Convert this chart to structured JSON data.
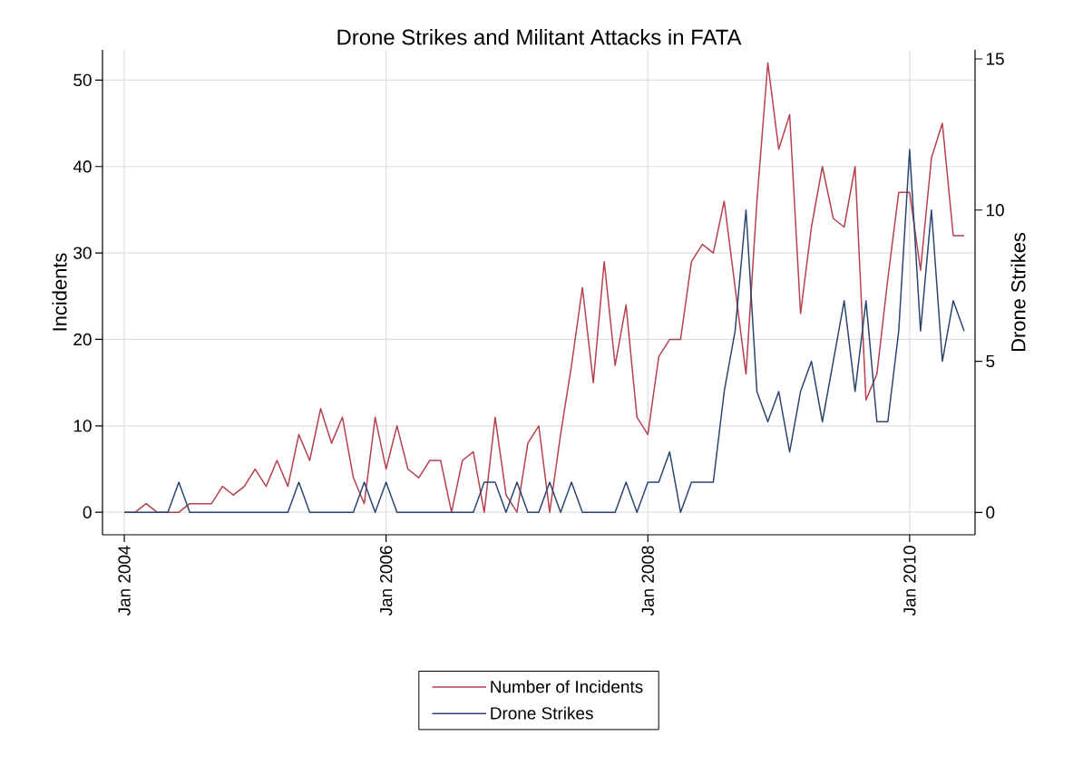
{
  "chart_data": {
    "type": "line",
    "title": "Drone Strikes and Militant Attacks in FATA",
    "ylabel": "Incidents",
    "y2label": "Drone Strikes",
    "x": [
      "2004-01",
      "2004-02",
      "2004-03",
      "2004-04",
      "2004-05",
      "2004-06",
      "2004-07",
      "2004-08",
      "2004-09",
      "2004-10",
      "2004-11",
      "2004-12",
      "2005-01",
      "2005-02",
      "2005-03",
      "2005-04",
      "2005-05",
      "2005-06",
      "2005-07",
      "2005-08",
      "2005-09",
      "2005-10",
      "2005-11",
      "2005-12",
      "2006-01",
      "2006-02",
      "2006-03",
      "2006-04",
      "2006-05",
      "2006-06",
      "2006-07",
      "2006-08",
      "2006-09",
      "2006-10",
      "2006-11",
      "2006-12",
      "2007-01",
      "2007-02",
      "2007-03",
      "2007-04",
      "2007-05",
      "2007-06",
      "2007-07",
      "2007-08",
      "2007-09",
      "2007-10",
      "2007-11",
      "2007-12",
      "2008-01",
      "2008-02",
      "2008-03",
      "2008-04",
      "2008-05",
      "2008-06",
      "2008-07",
      "2008-08",
      "2008-09",
      "2008-10",
      "2008-11",
      "2008-12",
      "2009-01",
      "2009-02",
      "2009-03",
      "2009-04",
      "2009-05",
      "2009-06",
      "2009-07",
      "2009-08",
      "2009-09",
      "2009-10",
      "2009-11",
      "2009-12",
      "2010-01",
      "2010-02",
      "2010-03",
      "2010-04",
      "2010-05",
      "2010-06"
    ],
    "series": [
      {
        "name": "Number of Incidents",
        "color": "#b5414f",
        "values": [
          0,
          0,
          1,
          0,
          0,
          0,
          1,
          1,
          1,
          3,
          2,
          3,
          5,
          3,
          6,
          3,
          9,
          6,
          12,
          8,
          11,
          4,
          1,
          11,
          5,
          10,
          5,
          4,
          6,
          6,
          0,
          6,
          7,
          0,
          11,
          2,
          0,
          8,
          10,
          0,
          9,
          17,
          26,
          15,
          29,
          17,
          24,
          11,
          9,
          18,
          20,
          20,
          29,
          31,
          30,
          36,
          26,
          16,
          36,
          52,
          42,
          46,
          23,
          33,
          40,
          34,
          33,
          40,
          13,
          16,
          27,
          37,
          37,
          28,
          41,
          45,
          32,
          32
        ]
      },
      {
        "name": "Drone Strikes",
        "color": "#2a4570",
        "axis": "y2",
        "values": [
          0,
          0,
          0,
          0,
          0,
          1,
          0,
          0,
          0,
          0,
          0,
          0,
          0,
          0,
          0,
          0,
          1,
          0,
          0,
          0,
          0,
          0,
          1,
          0,
          1,
          0,
          0,
          0,
          0,
          0,
          0,
          0,
          0,
          1,
          1,
          0,
          1,
          0,
          0,
          1,
          0,
          1,
          0,
          0,
          0,
          0,
          1,
          0,
          1,
          1,
          2,
          0,
          1,
          1,
          1,
          4,
          6,
          10,
          4,
          3,
          4,
          2,
          4,
          5,
          3,
          5,
          7,
          4,
          7,
          3,
          3,
          6,
          12,
          6,
          10,
          5,
          7,
          6
        ]
      }
    ],
    "xlim": [
      "2003-11",
      "2010-07"
    ],
    "xticks": [
      {
        "value": "2004-01",
        "label": "Jan 2004"
      },
      {
        "value": "2006-01",
        "label": "Jan 2006"
      },
      {
        "value": "2008-01",
        "label": "Jan 2008"
      },
      {
        "value": "2010-01",
        "label": "Jan 2010"
      }
    ],
    "ylim": [
      -2.6,
      53.5
    ],
    "yticks": [
      0,
      10,
      20,
      30,
      40,
      50
    ],
    "y2lim": [
      -0.74,
      15.3
    ],
    "y2ticks": [
      0,
      5,
      10,
      15
    ],
    "grid": true,
    "legend": "bottom"
  }
}
